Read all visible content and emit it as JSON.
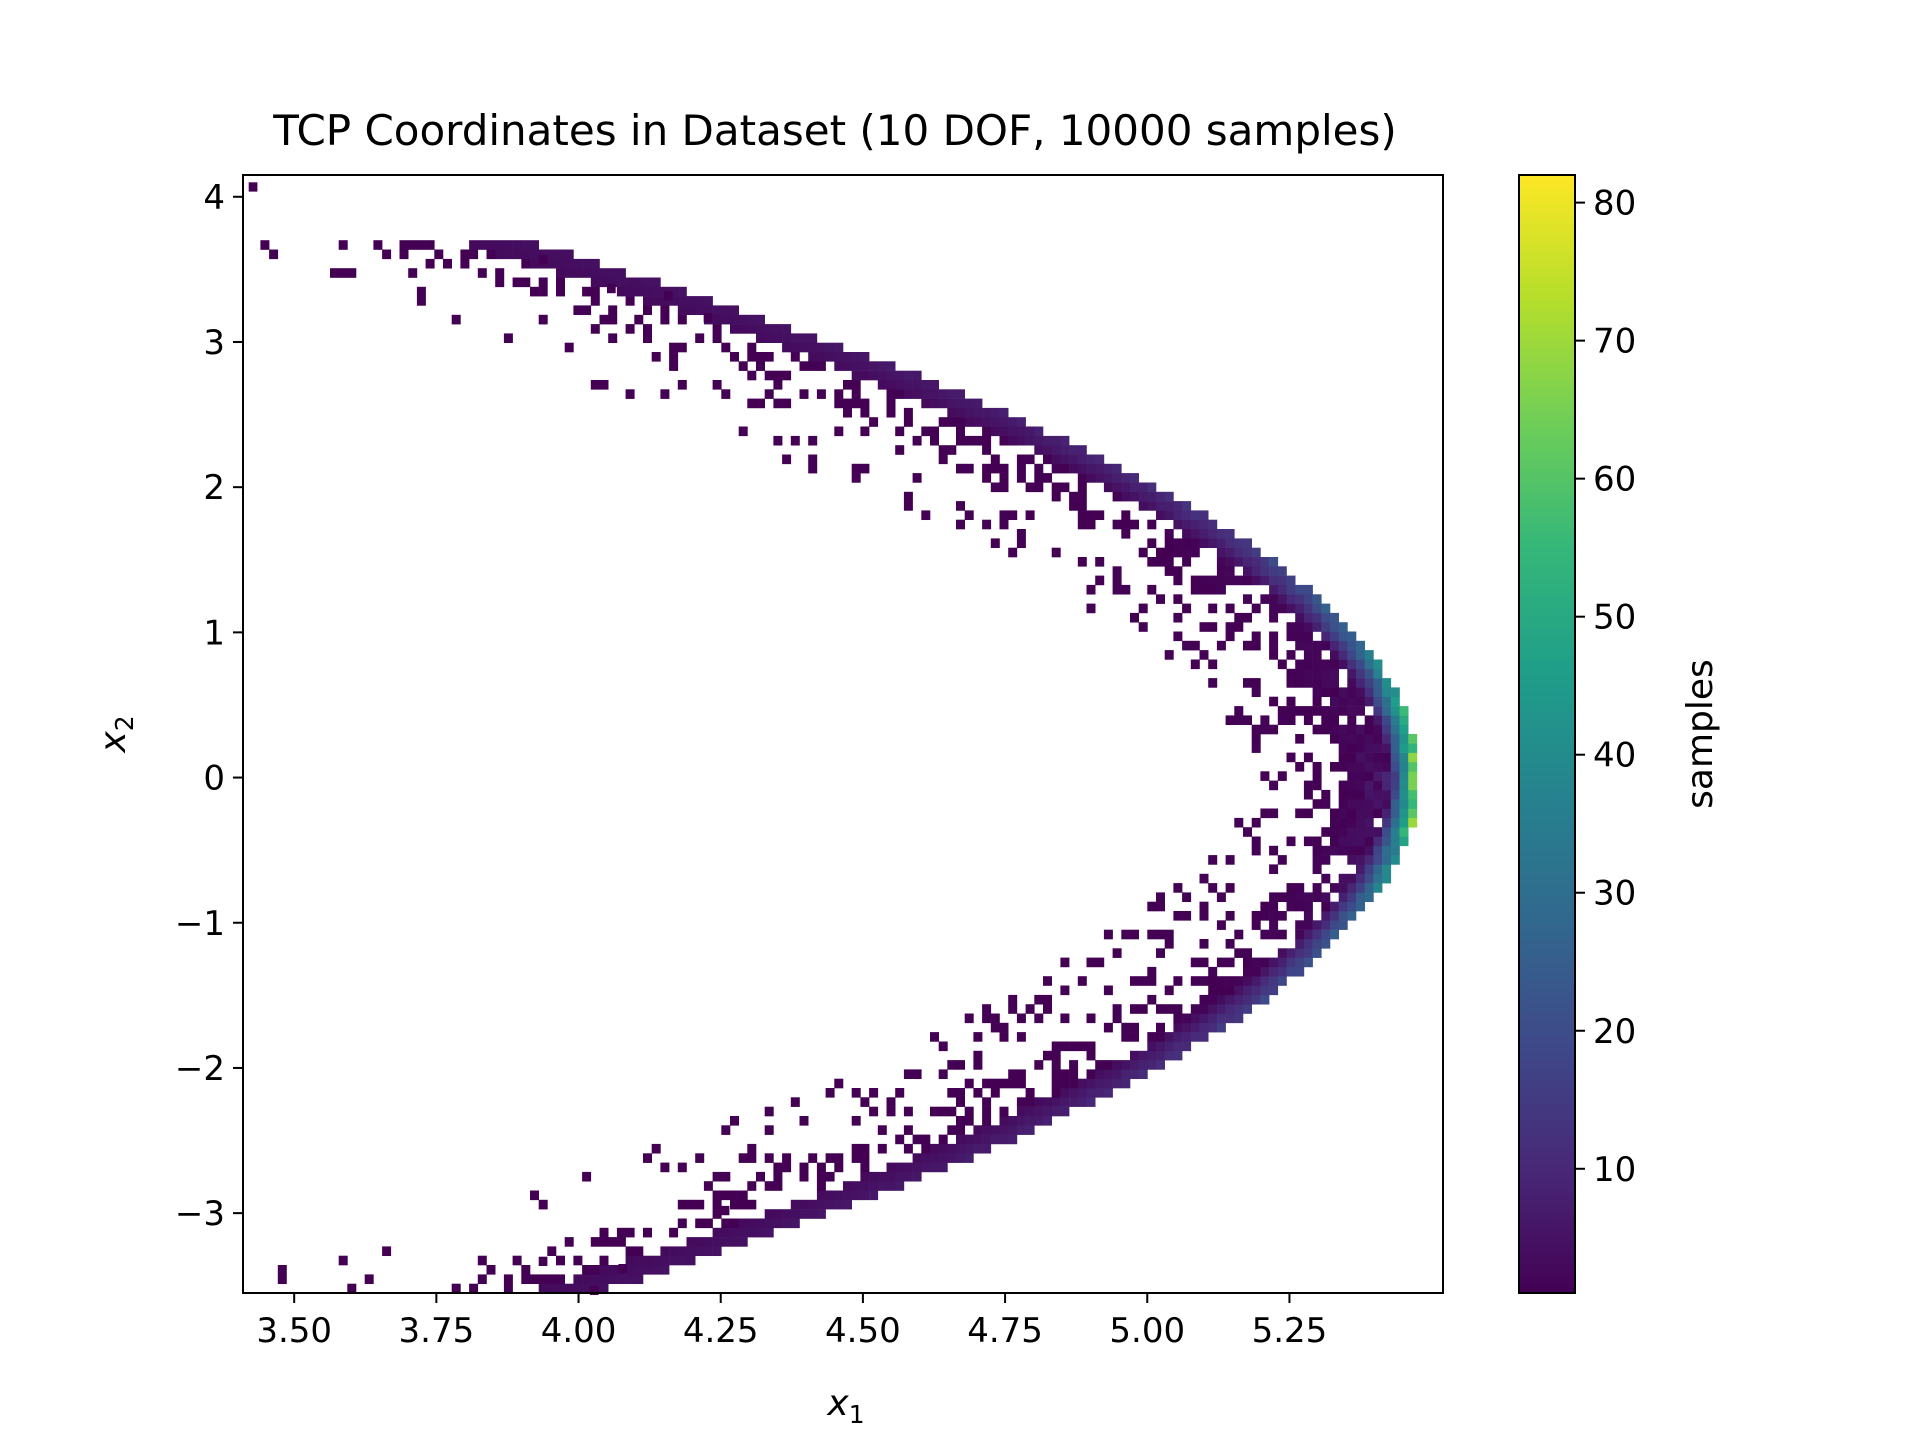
{
  "chart_data": {
    "type": "heatmap",
    "title": "TCP Coordinates in Dataset (10 DOF, 10000 samples)",
    "xlabel": "x",
    "xlabel_sub": "1",
    "ylabel": "x",
    "ylabel_sub": "2",
    "xlim": [
      3.41,
      5.52
    ],
    "ylim": [
      -3.55,
      4.15
    ],
    "xticks": [
      3.5,
      3.75,
      4.0,
      4.25,
      4.5,
      4.75,
      5.0,
      5.25
    ],
    "xtick_labels": [
      "3.50",
      "3.75",
      "4.00",
      "4.25",
      "4.50",
      "4.75",
      "5.00",
      "5.25"
    ],
    "yticks": [
      -3,
      -2,
      -1,
      0,
      1,
      2,
      3,
      4
    ],
    "ytick_labels": [
      "−3",
      "−2",
      "−1",
      "0",
      "1",
      "2",
      "3",
      "4"
    ],
    "colorbar": {
      "label": "samples",
      "colormap": "viridis",
      "vmin": 1,
      "vmax": 82,
      "ticks": [
        10,
        20,
        30,
        40,
        50,
        60,
        70,
        80
      ],
      "tick_labels": [
        "10",
        "20",
        "30",
        "40",
        "50",
        "60",
        "70",
        "80"
      ]
    },
    "distribution": {
      "shape": "arc opening to the left",
      "outer_edge_x_at_y0": 5.47,
      "peak_count_region": "x≈5.42–5.47, y≈-0.5–0.5",
      "x_range": [
        3.41,
        5.47
      ],
      "y_range": [
        -3.55,
        4.12
      ]
    },
    "grid": false
  },
  "colors": {
    "viridis": [
      "#440154",
      "#482878",
      "#3e4989",
      "#31688e",
      "#26828e",
      "#1f9e89",
      "#35b779",
      "#6ece58",
      "#b5de2b",
      "#fde725"
    ]
  }
}
